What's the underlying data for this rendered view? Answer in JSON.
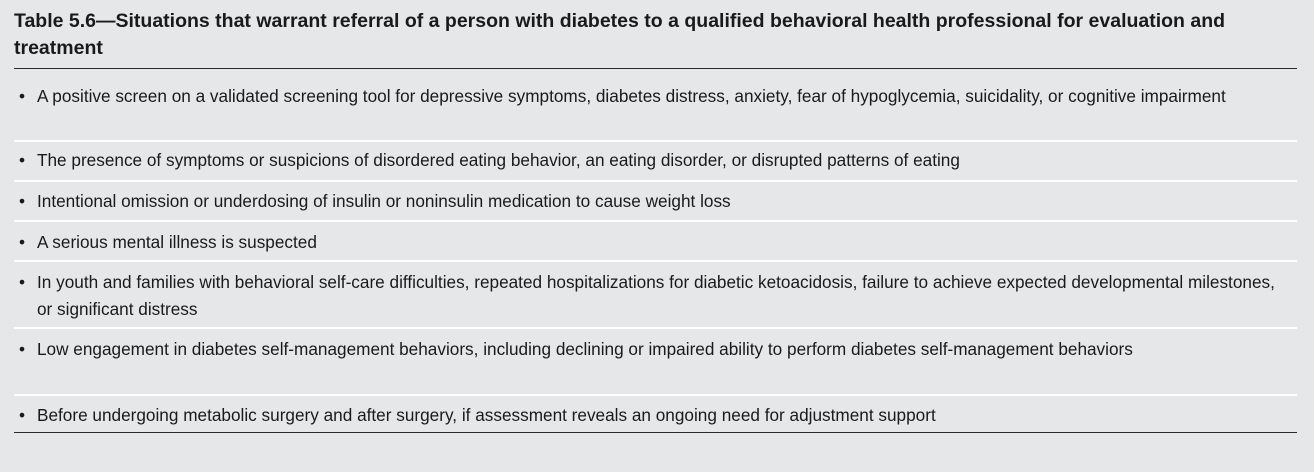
{
  "table": {
    "title": "Table 5.6—Situations that warrant referral of a person with diabetes to a qualified behavioral health professional for evaluation and treatment",
    "bullet_glyph": "•",
    "items": [
      "A positive screen on a validated screening tool for depressive symptoms, diabetes distress, anxiety, fear of hypoglycemia, suicidality, or cognitive impairment",
      "The presence of symptoms or suspicions of disordered eating behavior, an eating disorder, or disrupted patterns of eating",
      "Intentional omission or underdosing of insulin or noninsulin medication to cause weight loss",
      "A serious mental illness is suspected",
      "In youth and families with behavioral self-care difficulties, repeated hospitalizations for diabetic ketoacidosis, failure to achieve expected developmental milestones, or significant distress",
      "Low engagement in diabetes self-management behaviors, including declining or impaired ability to perform diabetes self-management behaviors",
      "Before undergoing metabolic surgery and after surgery, if assessment reveals an ongoing need for adjustment support"
    ]
  }
}
